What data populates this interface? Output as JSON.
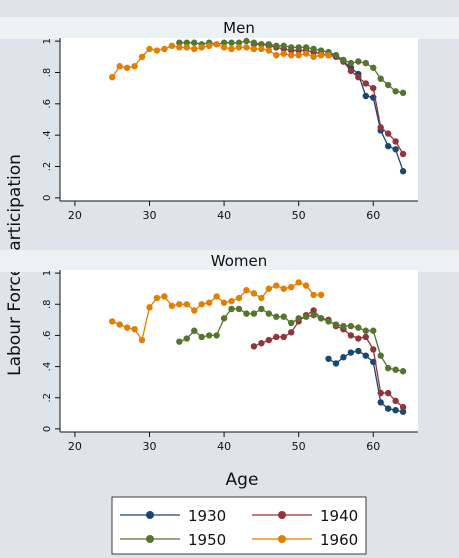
{
  "figure": {
    "ylabel": "Labour Force Participation",
    "xlabel": "Age"
  },
  "legend": {
    "entries": [
      {
        "name": "1930",
        "color": "#1a476f"
      },
      {
        "name": "1940",
        "color": "#90353b"
      },
      {
        "name": "1950",
        "color": "#55752f"
      },
      {
        "name": "1960",
        "color": "#e37e00"
      }
    ]
  },
  "chart_data": [
    {
      "type": "line",
      "title": "Men",
      "xlabel": "Age",
      "ylabel": "Labour Force Participation",
      "xlim": [
        18,
        66
      ],
      "ylim": [
        -0.02,
        1.02
      ],
      "xticks": [
        20,
        30,
        40,
        50,
        60
      ],
      "yticks": [
        0,
        0.2,
        0.4,
        0.6,
        0.8,
        1
      ],
      "ytick_labels": [
        "0",
        ".2",
        ".4",
        ".6",
        ".8",
        "1"
      ],
      "grid": false,
      "legend_position": "bottom",
      "series": [
        {
          "name": "1930",
          "color": "#1a476f",
          "x": [
            54,
            55,
            56,
            57,
            58,
            59,
            60,
            61,
            62,
            63,
            64
          ],
          "y": [
            0.92,
            0.91,
            0.87,
            0.83,
            0.79,
            0.65,
            0.64,
            0.43,
            0.33,
            0.31,
            0.17
          ]
        },
        {
          "name": "1940",
          "color": "#90353b",
          "x": [
            44,
            45,
            46,
            47,
            48,
            49,
            50,
            51,
            52,
            53,
            54,
            55,
            56,
            57,
            58,
            59,
            60,
            61,
            62,
            63,
            64
          ],
          "y": [
            0.98,
            0.98,
            0.97,
            0.96,
            0.95,
            0.94,
            0.94,
            0.94,
            0.93,
            0.92,
            0.91,
            0.9,
            0.87,
            0.81,
            0.77,
            0.73,
            0.7,
            0.45,
            0.41,
            0.36,
            0.28
          ]
        },
        {
          "name": "1950",
          "color": "#55752f",
          "x": [
            34,
            35,
            36,
            37,
            38,
            39,
            40,
            41,
            42,
            43,
            44,
            45,
            46,
            47,
            48,
            49,
            50,
            51,
            52,
            53,
            54,
            55,
            56,
            57,
            58,
            59,
            60,
            61,
            62,
            63,
            64
          ],
          "y": [
            0.99,
            0.99,
            0.99,
            0.98,
            0.99,
            0.98,
            0.99,
            0.99,
            0.99,
            1.0,
            0.99,
            0.98,
            0.98,
            0.97,
            0.97,
            0.96,
            0.96,
            0.96,
            0.95,
            0.94,
            0.93,
            0.91,
            0.88,
            0.86,
            0.87,
            0.86,
            0.83,
            0.76,
            0.72,
            0.68,
            0.67
          ]
        },
        {
          "name": "1960",
          "color": "#e37e00",
          "x": [
            25,
            26,
            27,
            28,
            29,
            30,
            31,
            32,
            33,
            34,
            35,
            36,
            37,
            38,
            39,
            40,
            41,
            42,
            43,
            44,
            45,
            46,
            47,
            48,
            49,
            50,
            51,
            52,
            53,
            54
          ],
          "y": [
            0.77,
            0.84,
            0.83,
            0.84,
            0.9,
            0.95,
            0.94,
            0.95,
            0.97,
            0.96,
            0.96,
            0.95,
            0.96,
            0.97,
            0.98,
            0.96,
            0.95,
            0.96,
            0.96,
            0.95,
            0.95,
            0.94,
            0.91,
            0.92,
            0.91,
            0.91,
            0.92,
            0.9,
            0.91,
            0.91
          ]
        }
      ]
    },
    {
      "type": "line",
      "title": "Women",
      "xlabel": "Age",
      "ylabel": "Labour Force Participation",
      "xlim": [
        18,
        66
      ],
      "ylim": [
        -0.02,
        1.02
      ],
      "xticks": [
        20,
        30,
        40,
        50,
        60
      ],
      "yticks": [
        0,
        0.2,
        0.4,
        0.6,
        0.8,
        1
      ],
      "ytick_labels": [
        "0",
        ".2",
        ".4",
        ".6",
        ".8",
        "1"
      ],
      "grid": false,
      "legend_position": "bottom",
      "series": [
        {
          "name": "1930",
          "color": "#1a476f",
          "x": [
            54,
            55,
            56,
            57,
            58,
            59,
            60,
            61,
            62,
            63,
            64
          ],
          "y": [
            0.45,
            0.42,
            0.46,
            0.49,
            0.5,
            0.47,
            0.43,
            0.17,
            0.13,
            0.12,
            0.11
          ]
        },
        {
          "name": "1940",
          "color": "#90353b",
          "x": [
            44,
            45,
            46,
            47,
            48,
            49,
            50,
            51,
            52,
            53,
            54,
            55,
            56,
            57,
            58,
            59,
            60,
            61,
            62,
            63,
            64
          ],
          "y": [
            0.53,
            0.55,
            0.57,
            0.59,
            0.59,
            0.62,
            0.69,
            0.73,
            0.76,
            0.71,
            0.7,
            0.66,
            0.64,
            0.6,
            0.58,
            0.59,
            0.51,
            0.23,
            0.23,
            0.18,
            0.14
          ]
        },
        {
          "name": "1950",
          "color": "#55752f",
          "x": [
            34,
            35,
            36,
            37,
            38,
            39,
            40,
            41,
            42,
            43,
            44,
            45,
            46,
            47,
            48,
            49,
            50,
            51,
            52,
            53,
            54,
            55,
            56,
            57,
            58,
            59,
            60,
            61,
            62,
            63,
            64
          ],
          "y": [
            0.56,
            0.58,
            0.63,
            0.59,
            0.6,
            0.6,
            0.71,
            0.77,
            0.77,
            0.74,
            0.74,
            0.77,
            0.74,
            0.72,
            0.72,
            0.68,
            0.71,
            0.72,
            0.73,
            0.71,
            0.69,
            0.67,
            0.66,
            0.66,
            0.65,
            0.63,
            0.63,
            0.47,
            0.39,
            0.38,
            0.37
          ]
        },
        {
          "name": "1960",
          "color": "#e37e00",
          "x": [
            25,
            26,
            27,
            28,
            29,
            30,
            31,
            32,
            33,
            34,
            35,
            36,
            37,
            38,
            39,
            40,
            41,
            42,
            43,
            44,
            45,
            46,
            47,
            48,
            49,
            50,
            51,
            52,
            53
          ],
          "y": [
            0.69,
            0.67,
            0.65,
            0.64,
            0.57,
            0.78,
            0.84,
            0.85,
            0.79,
            0.8,
            0.8,
            0.76,
            0.8,
            0.81,
            0.85,
            0.81,
            0.82,
            0.84,
            0.89,
            0.87,
            0.84,
            0.9,
            0.92,
            0.9,
            0.91,
            0.94,
            0.92,
            0.86,
            0.86
          ]
        }
      ]
    }
  ]
}
